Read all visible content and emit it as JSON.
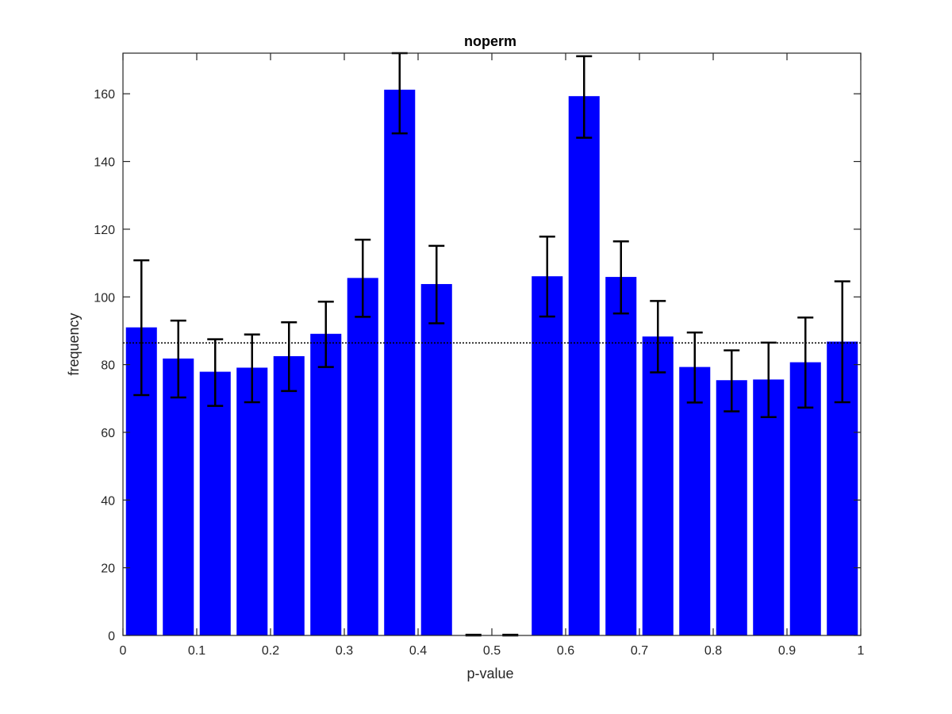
{
  "chart_data": {
    "type": "bar",
    "title": "noperm",
    "xlabel": "p-value",
    "ylabel": "frequency",
    "xlim": [
      0,
      1
    ],
    "ylim": [
      0,
      172
    ],
    "x_ticks": [
      0,
      0.1,
      0.2,
      0.3,
      0.4,
      0.5,
      0.6,
      0.7,
      0.8,
      0.9,
      1
    ],
    "x_tick_labels": [
      "0",
      "0.1",
      "0.2",
      "0.3",
      "0.4",
      "0.5",
      "0.6",
      "0.7",
      "0.8",
      "0.9",
      "1"
    ],
    "y_ticks": [
      0,
      20,
      40,
      60,
      80,
      100,
      120,
      140,
      160
    ],
    "y_tick_labels": [
      "0",
      "20",
      "40",
      "60",
      "80",
      "100",
      "120",
      "140",
      "160"
    ],
    "bin_centers": [
      0.025,
      0.075,
      0.125,
      0.175,
      0.225,
      0.275,
      0.325,
      0.375,
      0.425,
      0.475,
      0.525,
      0.575,
      0.625,
      0.675,
      0.725,
      0.775,
      0.825,
      0.875,
      0.925,
      0.975
    ],
    "bar_width": 0.042,
    "values": [
      91,
      81.8,
      77.9,
      79.1,
      82.5,
      89.1,
      105.6,
      161.2,
      103.8,
      0.1,
      0.1,
      106.1,
      159.3,
      105.9,
      88.3,
      79.3,
      75.4,
      75.6,
      80.7,
      86.8
    ],
    "error_low": [
      71,
      70.3,
      67.8,
      68.9,
      72.2,
      79.3,
      94.1,
      148.3,
      92.2,
      0,
      0,
      94.2,
      147,
      95.1,
      77.7,
      68.8,
      66.2,
      64.5,
      67.3,
      68.9
    ],
    "error_high": [
      110.8,
      93,
      87.5,
      88.9,
      92.5,
      98.6,
      116.9,
      172,
      115.1,
      0.2,
      0.2,
      117.8,
      171.1,
      116.4,
      98.8,
      89.5,
      84.2,
      86.5,
      93.9,
      104.6
    ],
    "reference_line": 86.4,
    "grid": false,
    "colors": {
      "bar": "#0000ff",
      "error_bar": "#000000",
      "axis": "#262626",
      "reference_line": "#000000"
    }
  }
}
